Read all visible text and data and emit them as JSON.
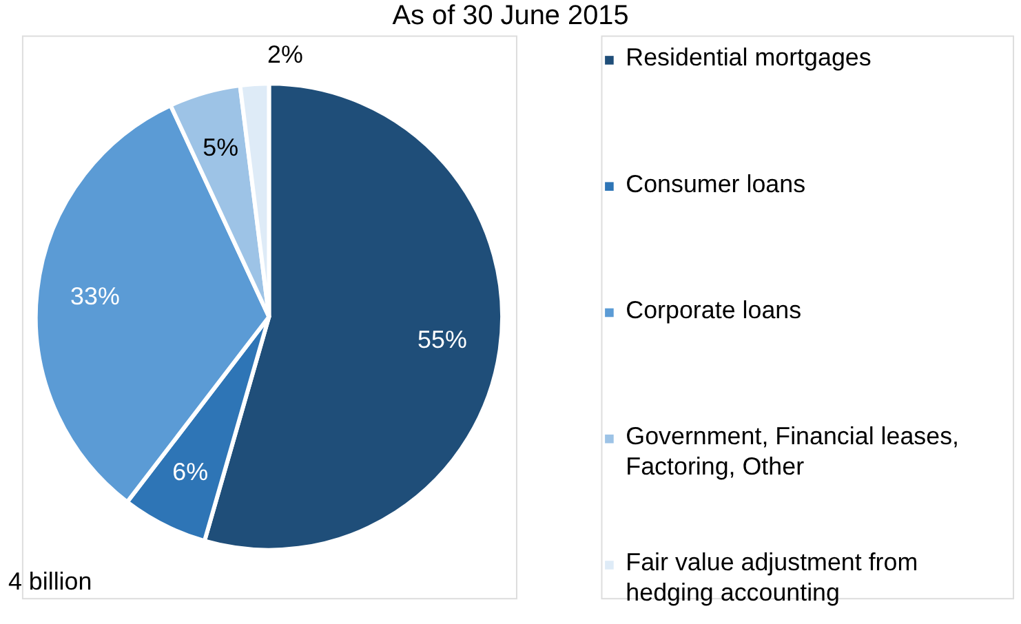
{
  "chart_data": {
    "type": "pie",
    "title": "As of 30 June 2015",
    "categories": [
      "Residential mortgages",
      "Consumer loans",
      "Corporate loans",
      "Government, Financial leases, Factoring, Other",
      "Fair value adjustment from hedging accounting"
    ],
    "values": [
      55,
      6,
      33,
      5,
      2
    ],
    "colors": [
      "#1f4e79",
      "#2e75b6",
      "#5b9bd5",
      "#9dc3e6",
      "#deebf7"
    ],
    "value_labels": [
      "55%",
      "6%",
      "33%",
      "5%",
      "2%"
    ],
    "legend": "right",
    "annotations": [
      "4 billion"
    ]
  }
}
